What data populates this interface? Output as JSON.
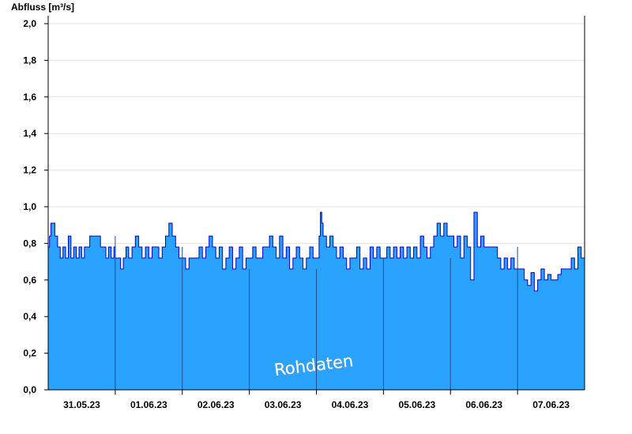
{
  "chart_data": {
    "type": "area",
    "title": "",
    "ylabel": "Abfluss [m³/s]",
    "xlabel": "",
    "watermark": "Rohdaten",
    "ylim": [
      0,
      2.0
    ],
    "xlim": [
      0,
      8
    ],
    "yticks": [
      "0,0",
      "0,2",
      "0,4",
      "0,6",
      "0,8",
      "1,0",
      "1,2",
      "1,4",
      "1,6",
      "1,8",
      "2,0"
    ],
    "day_labels": [
      "31.05.23",
      "01.06.23",
      "02.06.23",
      "03.06.23",
      "04.06.23",
      "05.06.23",
      "06.06.23",
      "07.06.23"
    ],
    "grid": "horizontal",
    "colors": {
      "fill": "#29a3ff",
      "line": "#0000cc",
      "grid": "#e3e3e3",
      "axis": "#000000",
      "day_divider": "#1f4f8f"
    },
    "series": [
      {
        "x": [
          0.0,
          0.02,
          0.04,
          0.06,
          0.1,
          0.14,
          0.18,
          0.22,
          0.26,
          0.3,
          0.34,
          0.38,
          0.42,
          0.46,
          0.5,
          0.54,
          0.58,
          0.62,
          0.66,
          0.7,
          0.74,
          0.78,
          0.82,
          0.86,
          0.9,
          0.94,
          0.98,
          1.0,
          1.04,
          1.08,
          1.12,
          1.16,
          1.2,
          1.25,
          1.3,
          1.35,
          1.4,
          1.45,
          1.5,
          1.55,
          1.6,
          1.65,
          1.7,
          1.75,
          1.8,
          1.85,
          1.9,
          1.95,
          2.0,
          2.05,
          2.1,
          2.15,
          2.2,
          2.25,
          2.3,
          2.35,
          2.4,
          2.45,
          2.5,
          2.55,
          2.6,
          2.65,
          2.7,
          2.75,
          2.8,
          2.85,
          2.9,
          2.95,
          3.0,
          3.05,
          3.1,
          3.15,
          3.2,
          3.25,
          3.3,
          3.35,
          3.4,
          3.45,
          3.5,
          3.55,
          3.6,
          3.65,
          3.7,
          3.75,
          3.8,
          3.85,
          3.9,
          3.95,
          4.0,
          4.04,
          4.06,
          4.08,
          4.1,
          4.15,
          4.2,
          4.25,
          4.3,
          4.35,
          4.4,
          4.45,
          4.5,
          4.55,
          4.6,
          4.65,
          4.7,
          4.75,
          4.8,
          4.85,
          4.9,
          4.95,
          5.0,
          5.05,
          5.1,
          5.15,
          5.2,
          5.25,
          5.3,
          5.35,
          5.4,
          5.45,
          5.5,
          5.55,
          5.6,
          5.65,
          5.7,
          5.75,
          5.8,
          5.85,
          5.9,
          5.95,
          6.0,
          6.05,
          6.1,
          6.15,
          6.2,
          6.25,
          6.3,
          6.35,
          6.4,
          6.45,
          6.5,
          6.55,
          6.6,
          6.65,
          6.7,
          6.75,
          6.8,
          6.85,
          6.9,
          6.95,
          7.0,
          7.05,
          7.1,
          7.15,
          7.2,
          7.25,
          7.3,
          7.35,
          7.4,
          7.45,
          7.5,
          7.55,
          7.6,
          7.65,
          7.7,
          7.75,
          7.8,
          7.85,
          7.9,
          7.95,
          8.0
        ],
        "values": [
          0.78,
          0.84,
          0.91,
          0.91,
          0.84,
          0.78,
          0.72,
          0.78,
          0.72,
          0.84,
          0.72,
          0.78,
          0.72,
          0.78,
          0.72,
          0.78,
          0.78,
          0.84,
          0.84,
          0.84,
          0.84,
          0.78,
          0.78,
          0.72,
          0.78,
          0.72,
          0.78,
          0.72,
          0.72,
          0.66,
          0.72,
          0.78,
          0.72,
          0.78,
          0.84,
          0.78,
          0.72,
          0.78,
          0.72,
          0.78,
          0.78,
          0.72,
          0.78,
          0.84,
          0.91,
          0.84,
          0.78,
          0.72,
          0.72,
          0.66,
          0.72,
          0.72,
          0.72,
          0.78,
          0.72,
          0.78,
          0.84,
          0.78,
          0.72,
          0.78,
          0.66,
          0.72,
          0.78,
          0.66,
          0.72,
          0.78,
          0.66,
          0.72,
          0.72,
          0.78,
          0.72,
          0.72,
          0.78,
          0.78,
          0.84,
          0.78,
          0.72,
          0.84,
          0.72,
          0.78,
          0.66,
          0.72,
          0.78,
          0.72,
          0.66,
          0.72,
          0.78,
          0.72,
          0.72,
          0.84,
          0.97,
          0.91,
          0.84,
          0.78,
          0.84,
          0.78,
          0.72,
          0.78,
          0.72,
          0.66,
          0.72,
          0.72,
          0.78,
          0.66,
          0.72,
          0.66,
          0.78,
          0.72,
          0.78,
          0.72,
          0.72,
          0.78,
          0.72,
          0.78,
          0.72,
          0.78,
          0.72,
          0.78,
          0.72,
          0.78,
          0.72,
          0.84,
          0.78,
          0.72,
          0.78,
          0.84,
          0.91,
          0.84,
          0.91,
          0.84,
          0.84,
          0.78,
          0.84,
          0.72,
          0.84,
          0.78,
          0.6,
          0.97,
          0.78,
          0.84,
          0.78,
          0.78,
          0.78,
          0.78,
          0.72,
          0.66,
          0.72,
          0.66,
          0.72,
          0.66,
          0.66,
          0.66,
          0.6,
          0.57,
          0.64,
          0.54,
          0.6,
          0.66,
          0.6,
          0.63,
          0.6,
          0.6,
          0.63,
          0.66,
          0.66,
          0.66,
          0.72,
          0.66,
          0.78,
          0.72,
          0.72
        ]
      }
    ]
  }
}
